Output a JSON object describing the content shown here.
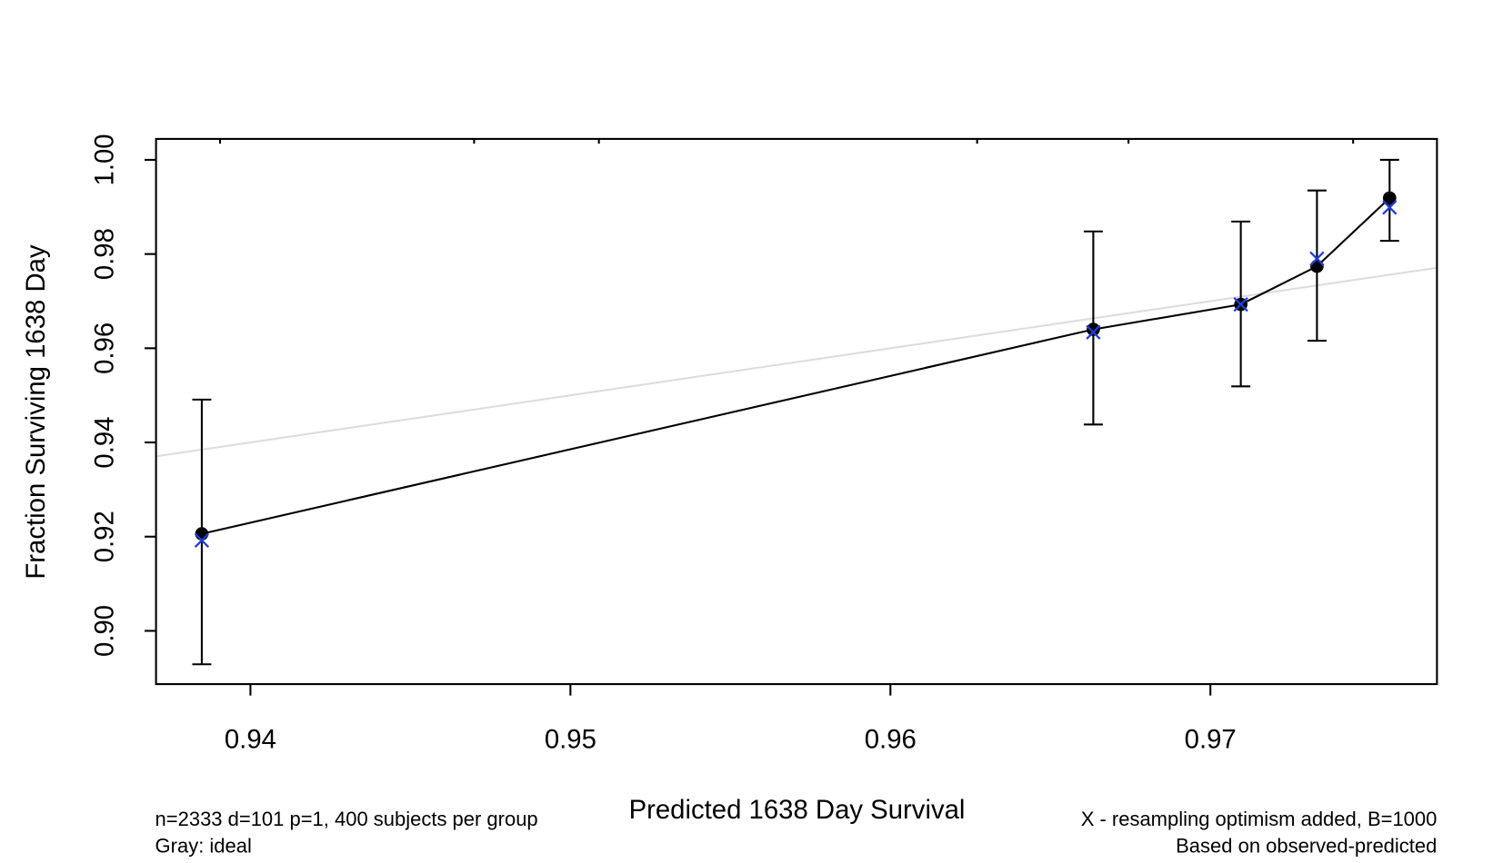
{
  "chart_data": {
    "type": "calibration",
    "xlabel": "Predicted  1638 Day Survival",
    "ylabel": "Fraction Surviving 1638 Day",
    "notes_left": [
      "n=2333 d=101 p=1, 400 subjects per group",
      "Gray: ideal"
    ],
    "notes_right": [
      "X - resampling optimism added, B=1000",
      "Based on observed-predicted"
    ],
    "xlim": [
      0.93705,
      0.97708
    ],
    "ylim": [
      0.88869,
      1.00444
    ],
    "xticks": [
      0.94,
      0.95,
      0.96,
      0.97
    ],
    "yticks": [
      {
        "value": 0.9,
        "label": "0.90"
      },
      0.92,
      0.94,
      0.96,
      0.98,
      {
        "value": 1.0,
        "label": "1.00"
      }
    ],
    "observed": {
      "color": "#000000",
      "x": [
        0.93848,
        0.96634,
        0.97095,
        0.97333,
        0.9756
      ],
      "y": [
        0.9206,
        0.964,
        0.9693,
        0.9774,
        0.9919
      ],
      "lower": [
        0.8929,
        0.9438,
        0.9519,
        0.9616,
        0.9828
      ],
      "upper": [
        0.9491,
        0.9848,
        0.9869,
        0.9935,
        1.0
      ]
    },
    "corrected": {
      "color": "#1f3fd8",
      "y": [
        0.9192,
        0.9634,
        0.9693,
        0.979,
        0.9899
      ]
    },
    "ideal_color": "#dddddd",
    "rug": [
      0.93905,
      0.94699,
      0.95089,
      0.96271,
      0.96744,
      0.97446
    ]
  }
}
